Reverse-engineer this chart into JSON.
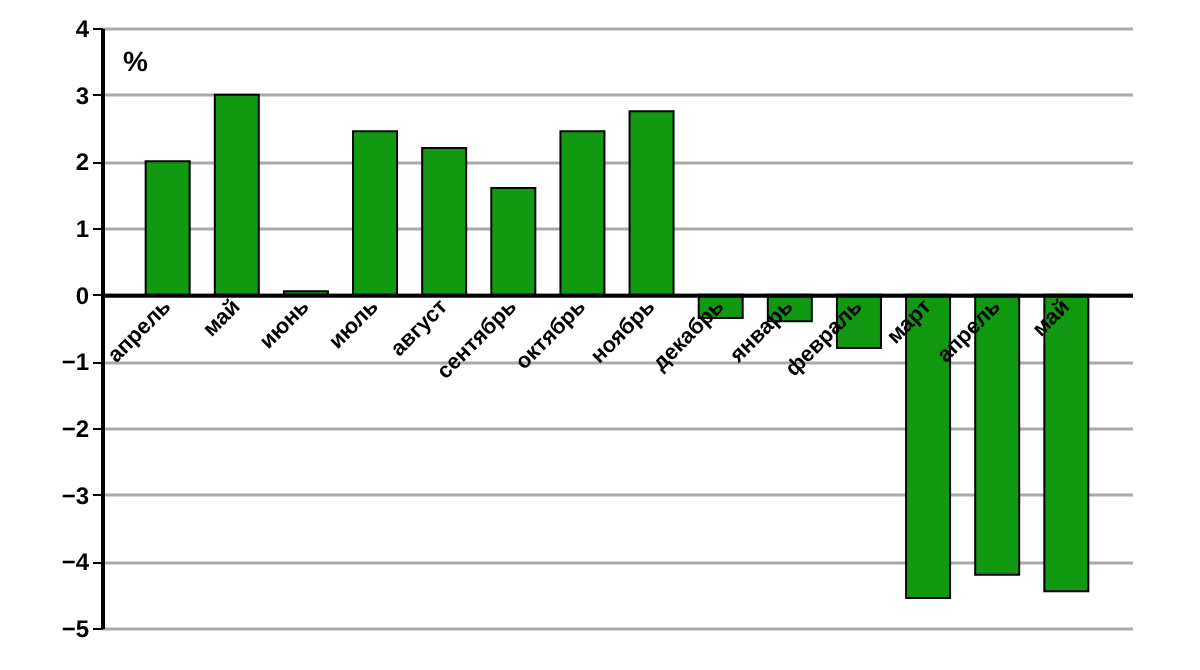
{
  "chart_data": {
    "type": "bar",
    "ylabel": "%",
    "categories": [
      "апрель",
      "май",
      "июнь",
      "июль",
      "август",
      "сентябрь",
      "октябрь",
      "ноябрь",
      "декабрь",
      "январь",
      "февраль",
      "март",
      "апрель",
      "май"
    ],
    "values": [
      2.0,
      3.0,
      0.05,
      2.45,
      2.2,
      1.6,
      2.45,
      2.75,
      -0.35,
      -0.4,
      -0.8,
      -4.55,
      -4.2,
      -4.45
    ],
    "color": "#119911",
    "ylim": [
      -5,
      4
    ],
    "yticks": [
      -5,
      -4,
      -3,
      -2,
      -1,
      0,
      1,
      2,
      3,
      4
    ],
    "grid": "y"
  }
}
